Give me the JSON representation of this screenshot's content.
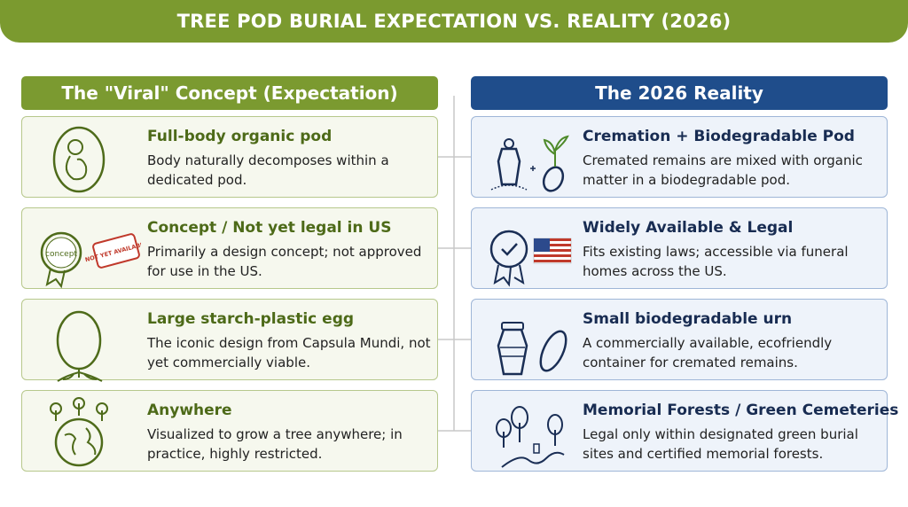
{
  "header": {
    "title": "TREE POD BURIAL EXPECTATION VS. REALITY (2026)"
  },
  "left": {
    "heading": "The \"Viral\" Concept (Expectation)",
    "items": [
      {
        "title": "Full-body organic pod",
        "text": "Body naturally decomposes within a dedicated pod."
      },
      {
        "title": "Concept / Not yet legal in US",
        "text": "Primarily a design concept; not approved for use in the US.",
        "badges": [
          "concept",
          "NOT YET AVAILABLE"
        ]
      },
      {
        "title": "Large starch-plastic egg",
        "text": "The iconic design from Capsula Mundi, not yet commercially viable."
      },
      {
        "title": "Anywhere",
        "text": "Visualized to grow a tree anywhere; in practice, highly restricted."
      }
    ]
  },
  "right": {
    "heading": "The 2026 Reality",
    "items": [
      {
        "title": "Cremation + Biodegradable Pod",
        "text": "Cremated remains are mixed with organic matter in a biodegradable pod."
      },
      {
        "title": "Widely Available & Legal",
        "text": "Fits existing laws; accessible via funeral homes across the US."
      },
      {
        "title": "Small biodegradable urn",
        "text": "A commercially available, ecofriendly container for cremated remains."
      },
      {
        "title": "Memorial Forests / Green Cemeteries",
        "text": "Legal only within designated green burial sites and certified memorial forests."
      }
    ]
  }
}
